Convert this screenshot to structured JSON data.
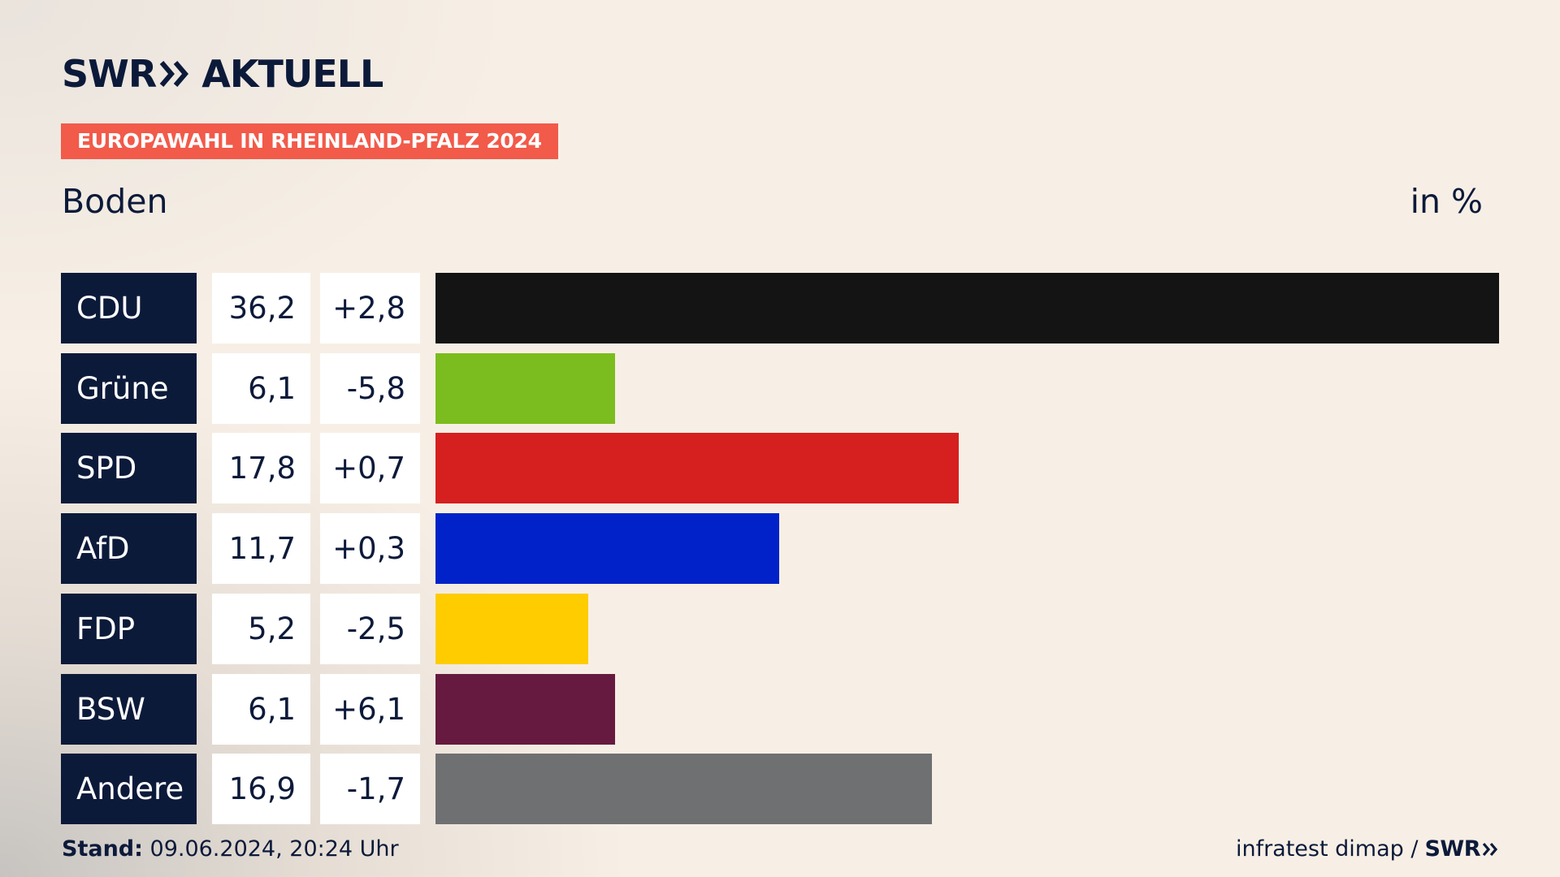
{
  "header": {
    "logo_brand": "SWR",
    "logo_product": "AKTUELL",
    "badge": "EUROPAWAHL IN RHEINLAND-PFALZ 2024",
    "region": "Boden",
    "unit": "in %"
  },
  "chart_data": {
    "type": "bar",
    "orientation": "horizontal",
    "title": "EUROPAWAHL IN RHEINLAND-PFALZ 2024",
    "subtitle": "Boden",
    "unit": "in %",
    "xlim": [
      0,
      36.2
    ],
    "categories": [
      "CDU",
      "Grüne",
      "SPD",
      "AfD",
      "FDP",
      "BSW",
      "Andere"
    ],
    "values": [
      36.2,
      6.1,
      17.8,
      11.7,
      5.2,
      6.1,
      16.9
    ],
    "value_labels": [
      "36,2",
      "6,1",
      "17,8",
      "11,7",
      "5,2",
      "6,1",
      "16,9"
    ],
    "diff_labels": [
      "+2,8",
      "-5,8",
      "+0,7",
      "+0,3",
      "-2,5",
      "+6,1",
      "-1,7"
    ],
    "colors": [
      "#141414",
      "#7bbd1e",
      "#d61f1f",
      "#0022c8",
      "#ffcc00",
      "#661a3f",
      "#6f7072"
    ]
  },
  "footer": {
    "stand_label": "Stand:",
    "stand_value": "09.06.2024, 20:24 Uhr",
    "source": "infratest dimap /",
    "source_brand": "SWR"
  },
  "colors": {
    "navy": "#0c1a3a",
    "badge": "#f25a4a",
    "background": "#f7efe5"
  }
}
